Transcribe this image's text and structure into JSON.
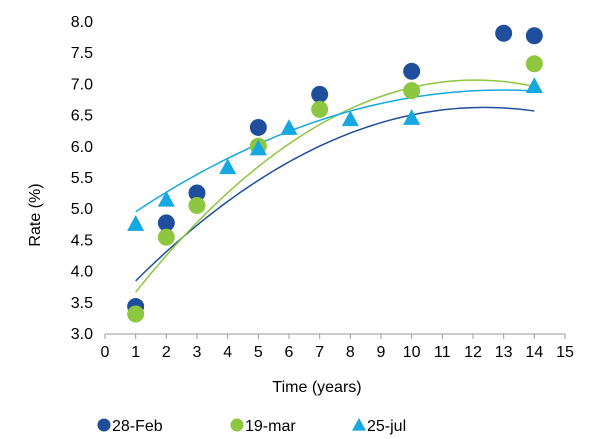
{
  "chart_data": {
    "type": "scatter",
    "title": "",
    "xlabel": "Time (years)",
    "ylabel": "Rate (%)",
    "xlim": [
      0,
      15
    ],
    "ylim": [
      3.0,
      8.0
    ],
    "x_ticks": [
      0,
      1,
      2,
      3,
      4,
      5,
      6,
      7,
      8,
      9,
      10,
      11,
      12,
      13,
      14,
      15
    ],
    "y_ticks": [
      "3.0",
      "3.5",
      "4.0",
      "4.5",
      "5.0",
      "5.5",
      "6.0",
      "6.5",
      "7.0",
      "7.5",
      "8.0"
    ],
    "grid": false,
    "legend_position": "bottom",
    "trendlines": "polynomial, order 2",
    "series": [
      {
        "name": "28-Feb",
        "marker": "circle",
        "color": "#1F4E9C",
        "x": [
          1,
          2,
          3,
          5,
          7,
          10,
          13,
          14
        ],
        "y": [
          3.44,
          4.78,
          5.26,
          6.31,
          6.84,
          7.21,
          7.82,
          7.78
        ],
        "trend": [
          -0.0215,
          0.532,
          3.34
        ]
      },
      {
        "name": "19-mar",
        "marker": "circle",
        "color": "#8DC63F",
        "x": [
          1,
          2,
          3,
          5,
          7,
          10,
          14
        ],
        "y": [
          3.32,
          4.55,
          5.06,
          6.01,
          6.6,
          6.9,
          7.33
        ],
        "trend": [
          -0.0277,
          0.669,
          3.03
        ]
      },
      {
        "name": "25-jul",
        "marker": "triangle",
        "color": "#16A8E0",
        "x": [
          1,
          2,
          4,
          5,
          6,
          8,
          10,
          14
        ],
        "y": [
          4.76,
          5.15,
          5.67,
          5.97,
          6.3,
          6.44,
          6.46,
          6.97
        ],
        "trend": [
          -0.0136,
          0.3529,
          4.62
        ]
      }
    ]
  }
}
